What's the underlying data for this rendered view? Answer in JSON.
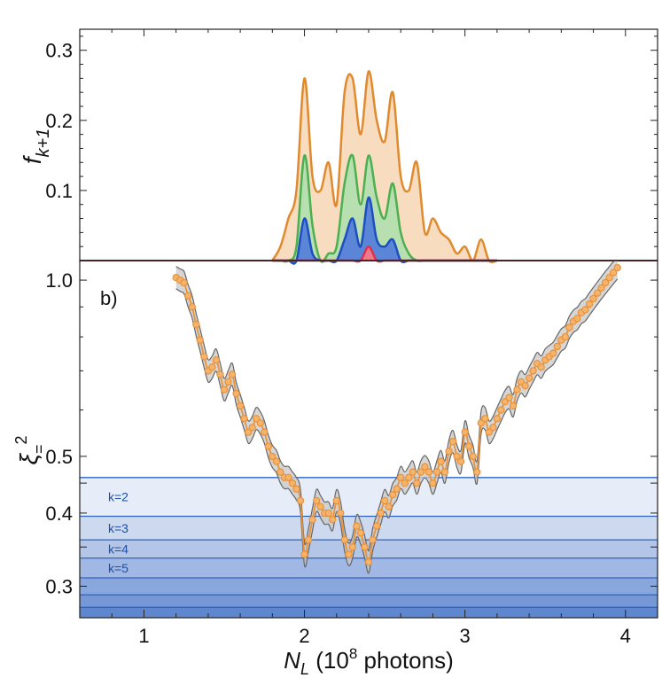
{
  "chart_data": [
    {
      "type": "area",
      "ylabel": "f",
      "ylabel_subscript": "k+1",
      "ylim": [
        0,
        0.33
      ],
      "yticks": [
        "0.1",
        "0.2",
        "0.3"
      ],
      "xlim": [
        0.6,
        4.2
      ],
      "x": [
        1.8,
        1.85,
        1.9,
        1.95,
        2.0,
        2.05,
        2.1,
        2.15,
        2.2,
        2.25,
        2.3,
        2.35,
        2.4,
        2.45,
        2.5,
        2.55,
        2.6,
        2.65,
        2.7,
        2.75,
        2.8,
        2.85,
        2.9,
        2.95,
        3.0,
        3.05,
        3.1,
        3.15,
        3.2
      ],
      "series": [
        {
          "color": "#e08a2e",
          "fill": "#f7dcc0",
          "values": [
            0.0,
            0.02,
            0.06,
            0.1,
            0.26,
            0.12,
            0.1,
            0.14,
            0.08,
            0.24,
            0.26,
            0.18,
            0.27,
            0.2,
            0.17,
            0.24,
            0.12,
            0.1,
            0.14,
            0.04,
            0.06,
            0.04,
            0.03,
            0.01,
            0.02,
            0.0,
            0.03,
            0.0,
            0.0
          ]
        },
        {
          "color": "#4caf50",
          "fill": "#b7dfb0",
          "values": [
            0.0,
            0.0,
            0.0,
            0.02,
            0.15,
            0.05,
            0.0,
            0.01,
            0.02,
            0.11,
            0.15,
            0.08,
            0.15,
            0.09,
            0.06,
            0.11,
            0.04,
            0.01,
            0.0,
            0.0,
            0.0,
            0.0,
            0.0,
            0.0,
            0.0,
            0.0,
            0.0,
            0.0,
            0.0
          ]
        },
        {
          "color": "#1c4fbf",
          "fill": "#5b86d8",
          "values": [
            0.0,
            0.0,
            0.0,
            0.0,
            0.06,
            0.01,
            0.0,
            0.0,
            0.0,
            0.03,
            0.06,
            0.02,
            0.09,
            0.03,
            0.02,
            0.03,
            0.0,
            0.0,
            0.0,
            0.0,
            0.0,
            0.0,
            0.0,
            0.0,
            0.0,
            0.0,
            0.0,
            0.0,
            0.0
          ]
        },
        {
          "color": "#e03050",
          "fill": "#f07a8a",
          "values": [
            0.0,
            0.0,
            0.0,
            0.0,
            0.0,
            0.0,
            0.0,
            0.0,
            0.0,
            0.0,
            0.0,
            0.0,
            0.02,
            0.0,
            0.0,
            0.0,
            0.0,
            0.0,
            0.0,
            0.0,
            0.0,
            0.0,
            0.0,
            0.0,
            0.0,
            0.0,
            0.0,
            0.0,
            0.0
          ]
        }
      ]
    },
    {
      "type": "line",
      "panel_label": "b)",
      "ylabel": "ξ",
      "ylabel_subscript": "=",
      "ylabel_superscript": "2",
      "xlabel_main": "N",
      "xlabel_subscript": "L",
      "xlabel_rest_before": " (10",
      "xlabel_superscript": "8",
      "xlabel_rest_after": " photons)",
      "yscale": "log",
      "ylim": [
        0.265,
        1.08
      ],
      "yticks": [
        "0.3",
        "0.4",
        "0.5",
        "1.0"
      ],
      "xlim": [
        0.6,
        4.2
      ],
      "xticks": [
        "1",
        "2",
        "3",
        "4"
      ],
      "bands": {
        "levels": [
          0.46,
          0.395,
          0.36,
          0.335,
          0.31,
          0.29,
          0.276
        ],
        "labels": [
          "k=2",
          "k=3",
          "k=4",
          "k=5"
        ],
        "colors": [
          "#e6edf8",
          "#cdd9ef",
          "#b4c6e8",
          "#a0b8e3",
          "#8aa7dc",
          "#7698d6",
          "#5f87cf"
        ],
        "line_color": "#2e63c0"
      },
      "series": [
        {
          "color": "#e8923a",
          "marker_fill": "#f5b36b",
          "band_color": "#c8c8c8",
          "x": [
            1.2,
            1.225,
            1.25,
            1.275,
            1.3,
            1.325,
            1.35,
            1.375,
            1.4,
            1.425,
            1.45,
            1.475,
            1.5,
            1.525,
            1.55,
            1.575,
            1.6,
            1.625,
            1.65,
            1.675,
            1.7,
            1.725,
            1.75,
            1.775,
            1.8,
            1.825,
            1.85,
            1.875,
            1.9,
            1.925,
            1.95,
            1.975,
            2.0,
            2.025,
            2.05,
            2.075,
            2.1,
            2.125,
            2.15,
            2.175,
            2.2,
            2.225,
            2.25,
            2.275,
            2.3,
            2.325,
            2.35,
            2.375,
            2.4,
            2.425,
            2.45,
            2.475,
            2.5,
            2.525,
            2.55,
            2.575,
            2.6,
            2.625,
            2.65,
            2.675,
            2.7,
            2.725,
            2.75,
            2.775,
            2.8,
            2.825,
            2.85,
            2.875,
            2.9,
            2.925,
            2.95,
            2.975,
            3.0,
            3.025,
            3.05,
            3.075,
            3.1,
            3.125,
            3.15,
            3.175,
            3.2,
            3.225,
            3.25,
            3.275,
            3.3,
            3.325,
            3.35,
            3.375,
            3.4,
            3.425,
            3.45,
            3.475,
            3.5,
            3.525,
            3.55,
            3.575,
            3.6,
            3.625,
            3.65,
            3.675,
            3.7,
            3.725,
            3.75,
            3.775,
            3.8,
            3.825,
            3.85,
            3.875,
            3.9,
            3.925,
            3.95
          ],
          "y": [
            1.01,
            1.0,
            0.99,
            0.94,
            0.9,
            0.84,
            0.79,
            0.74,
            0.7,
            0.71,
            0.73,
            0.69,
            0.65,
            0.67,
            0.69,
            0.64,
            0.61,
            0.58,
            0.55,
            0.56,
            0.58,
            0.57,
            0.55,
            0.52,
            0.5,
            0.49,
            0.47,
            0.46,
            0.46,
            0.45,
            0.44,
            0.42,
            0.34,
            0.36,
            0.39,
            0.42,
            0.41,
            0.4,
            0.4,
            0.39,
            0.42,
            0.4,
            0.36,
            0.34,
            0.35,
            0.38,
            0.37,
            0.35,
            0.33,
            0.36,
            0.38,
            0.4,
            0.42,
            0.41,
            0.43,
            0.44,
            0.46,
            0.45,
            0.46,
            0.47,
            0.45,
            0.47,
            0.48,
            0.47,
            0.45,
            0.47,
            0.49,
            0.47,
            0.51,
            0.53,
            0.5,
            0.49,
            0.55,
            0.52,
            0.5,
            0.47,
            0.57,
            0.58,
            0.55,
            0.56,
            0.58,
            0.6,
            0.62,
            0.63,
            0.61,
            0.65,
            0.67,
            0.66,
            0.68,
            0.7,
            0.72,
            0.71,
            0.73,
            0.74,
            0.75,
            0.77,
            0.79,
            0.8,
            0.83,
            0.85,
            0.86,
            0.88,
            0.89,
            0.91,
            0.93,
            0.95,
            0.97,
            0.99,
            1.01,
            1.03,
            1.05
          ]
        }
      ]
    }
  ]
}
